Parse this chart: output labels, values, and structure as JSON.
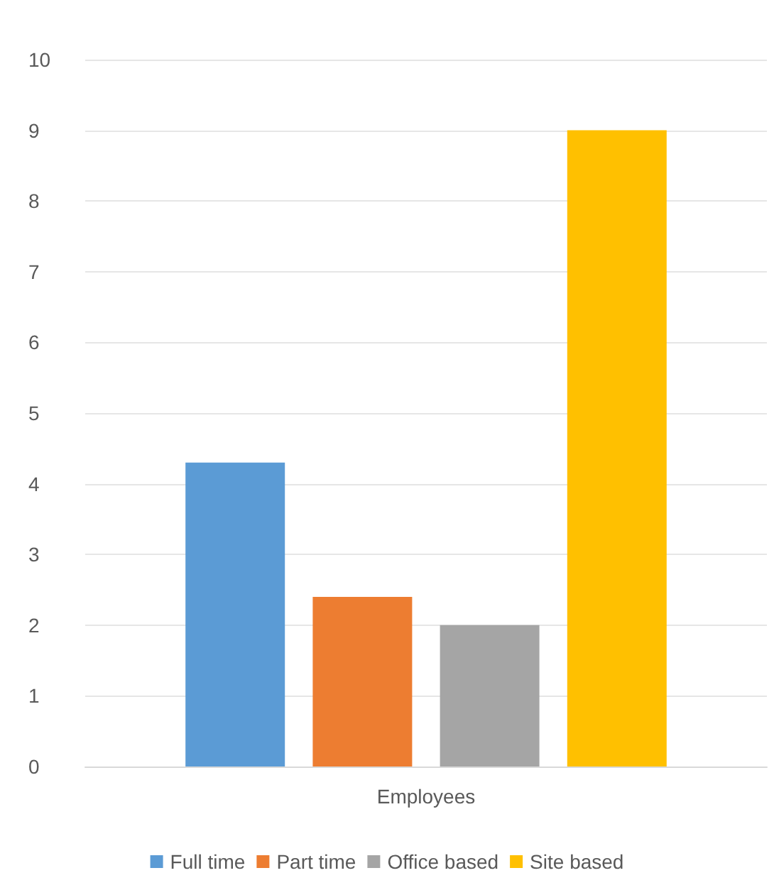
{
  "chart_data": {
    "type": "bar",
    "categories": [
      "Employees"
    ],
    "series": [
      {
        "name": "Full time",
        "color": "#5b9bd5",
        "values": [
          4.3
        ]
      },
      {
        "name": "Part time",
        "color": "#ed7d31",
        "values": [
          2.4
        ]
      },
      {
        "name": "Office based",
        "color": "#a5a5a5",
        "values": [
          2
        ]
      },
      {
        "name": "Site based",
        "color": "#ffc000",
        "values": [
          9
        ]
      }
    ],
    "ylim": [
      0,
      10
    ],
    "yticks": [
      0,
      1,
      2,
      3,
      4,
      5,
      6,
      7,
      8,
      9,
      10
    ],
    "grid": "y",
    "legend": "bottom"
  }
}
